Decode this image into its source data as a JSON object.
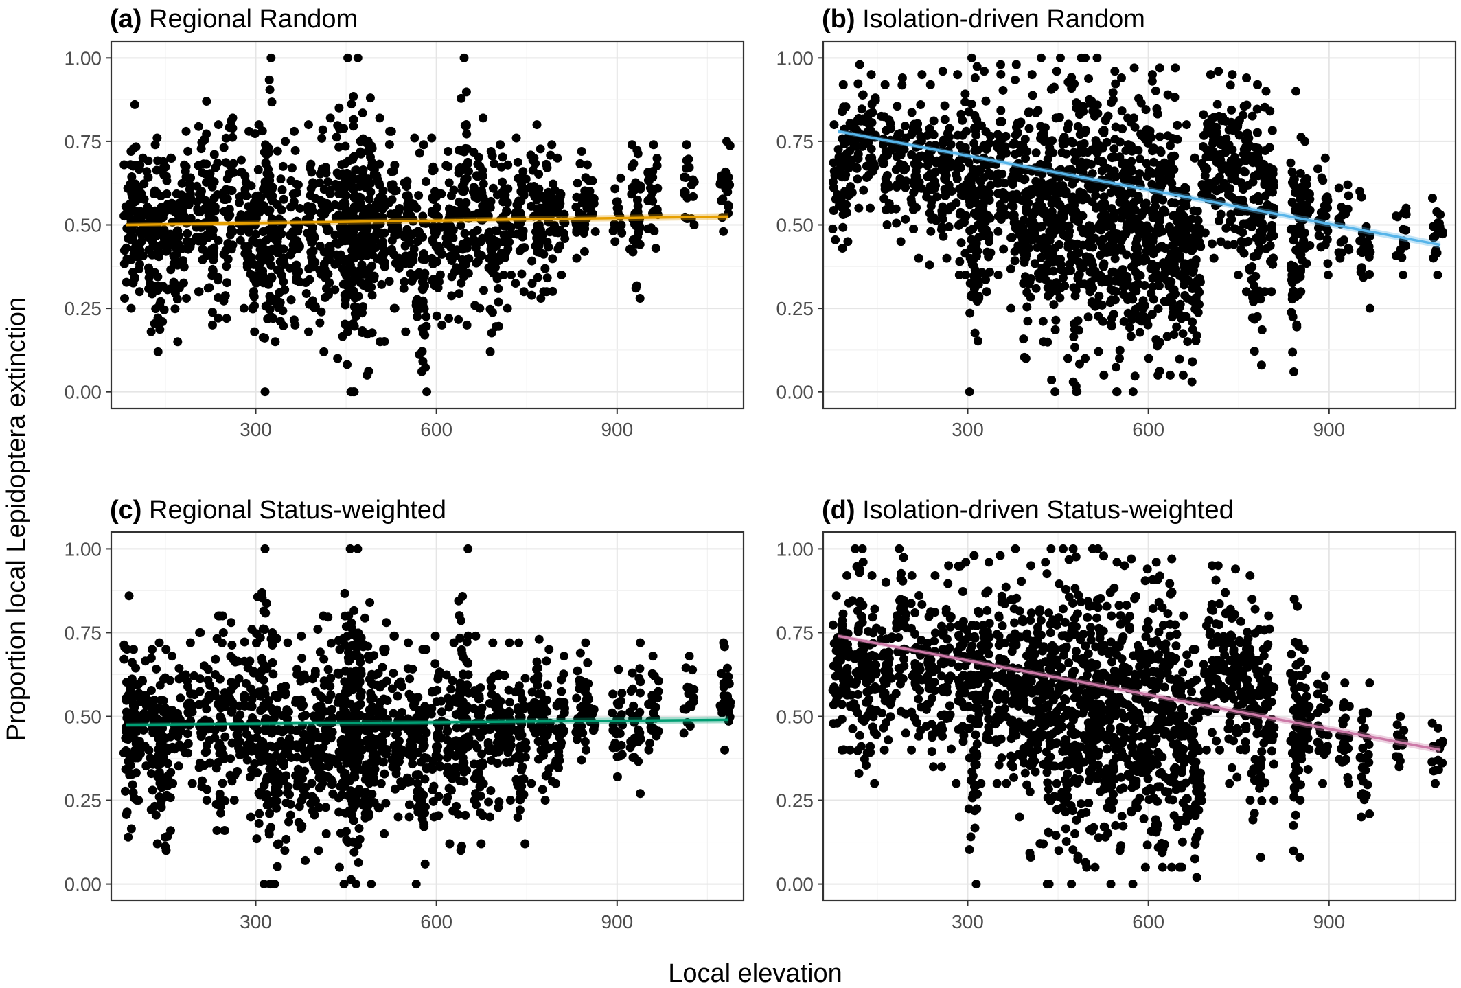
{
  "figure": {
    "ylabel": "Proportion local Lepidoptera extinction",
    "xlabel": "Local elevation"
  },
  "chart_data": [
    {
      "type": "scatter",
      "letter": "(a)",
      "title": "Regional Random",
      "xlim": [
        60,
        1110
      ],
      "ylim": [
        -0.05,
        1.05
      ],
      "xticks": [
        300,
        600,
        900
      ],
      "xtick_labels": [
        "300",
        "600",
        "900"
      ],
      "yticks": [
        0,
        0.25,
        0.5,
        0.75,
        1.0
      ],
      "ytick_labels": [
        "0.00",
        "0.25",
        "0.50",
        "0.75",
        "1.00"
      ],
      "grid": true,
      "points_color": "#000000",
      "trend": {
        "color": "#E69F00",
        "x": [
          85,
          1085
        ],
        "y": [
          0.5,
          0.525
        ]
      },
      "columns": [
        {
          "x": 90,
          "lo": 0.28,
          "hi": 0.72
        },
        {
          "x": 100,
          "lo": 0.25,
          "hi": 0.86
        },
        {
          "x": 115,
          "lo": 0.3,
          "hi": 0.7
        },
        {
          "x": 130,
          "lo": 0.18,
          "hi": 0.74
        },
        {
          "x": 145,
          "lo": 0.12,
          "hi": 0.76
        },
        {
          "x": 165,
          "lo": 0.15,
          "hi": 0.7
        },
        {
          "x": 185,
          "lo": 0.28,
          "hi": 0.78
        },
        {
          "x": 210,
          "lo": 0.3,
          "hi": 0.87
        },
        {
          "x": 230,
          "lo": 0.2,
          "hi": 0.8
        },
        {
          "x": 255,
          "lo": 0.22,
          "hi": 0.82
        },
        {
          "x": 280,
          "lo": 0.25,
          "hi": 0.78
        },
        {
          "x": 300,
          "lo": 0.18,
          "hi": 0.8
        },
        {
          "x": 320,
          "lo": 0.0,
          "hi": 1.0
        },
        {
          "x": 340,
          "lo": 0.15,
          "hi": 0.75
        },
        {
          "x": 365,
          "lo": 0.2,
          "hi": 0.78
        },
        {
          "x": 390,
          "lo": 0.18,
          "hi": 0.8
        },
        {
          "x": 415,
          "lo": 0.12,
          "hi": 0.82
        },
        {
          "x": 440,
          "lo": 0.1,
          "hi": 0.85
        },
        {
          "x": 455,
          "lo": 0.0,
          "hi": 1.0
        },
        {
          "x": 470,
          "lo": 0.0,
          "hi": 1.0
        },
        {
          "x": 485,
          "lo": 0.05,
          "hi": 0.88
        },
        {
          "x": 505,
          "lo": 0.15,
          "hi": 0.82
        },
        {
          "x": 530,
          "lo": 0.25,
          "hi": 0.78
        },
        {
          "x": 555,
          "lo": 0.18,
          "hi": 0.76
        },
        {
          "x": 575,
          "lo": 0.0,
          "hi": 0.74
        },
        {
          "x": 600,
          "lo": 0.2,
          "hi": 0.76
        },
        {
          "x": 625,
          "lo": 0.22,
          "hi": 0.72
        },
        {
          "x": 645,
          "lo": 0.2,
          "hi": 1.0
        },
        {
          "x": 670,
          "lo": 0.25,
          "hi": 0.82
        },
        {
          "x": 695,
          "lo": 0.12,
          "hi": 0.72
        },
        {
          "x": 715,
          "lo": 0.25,
          "hi": 0.74
        },
        {
          "x": 740,
          "lo": 0.3,
          "hi": 0.76
        },
        {
          "x": 765,
          "lo": 0.28,
          "hi": 0.8
        },
        {
          "x": 785,
          "lo": 0.3,
          "hi": 0.74
        },
        {
          "x": 805,
          "lo": 0.35,
          "hi": 0.7
        },
        {
          "x": 840,
          "lo": 0.4,
          "hi": 0.72
        },
        {
          "x": 855,
          "lo": 0.42,
          "hi": 0.68
        },
        {
          "x": 900,
          "lo": 0.45,
          "hi": 0.64
        },
        {
          "x": 930,
          "lo": 0.28,
          "hi": 0.74
        },
        {
          "x": 960,
          "lo": 0.43,
          "hi": 0.74
        },
        {
          "x": 1020,
          "lo": 0.5,
          "hi": 0.74
        },
        {
          "x": 1080,
          "lo": 0.48,
          "hi": 0.75
        }
      ]
    },
    {
      "type": "scatter",
      "letter": "(b)",
      "title": "Isolation-driven Random",
      "xlim": [
        60,
        1110
      ],
      "ylim": [
        -0.05,
        1.05
      ],
      "xticks": [
        300,
        600,
        900
      ],
      "xtick_labels": [
        "300",
        "600",
        "900"
      ],
      "yticks": [
        0,
        0.25,
        0.5,
        0.75,
        1.0
      ],
      "ytick_labels": [
        "0.00",
        "0.25",
        "0.50",
        "0.75",
        "1.00"
      ],
      "grid": true,
      "points_color": "#000000",
      "trend": {
        "color": "#56B4E9",
        "x": [
          85,
          1085
        ],
        "y": [
          0.78,
          0.44
        ]
      },
      "columns": [
        {
          "x": 85,
          "lo": 0.43,
          "hi": 0.8
        },
        {
          "x": 100,
          "lo": 0.45,
          "hi": 0.92
        },
        {
          "x": 120,
          "lo": 0.55,
          "hi": 0.98
        },
        {
          "x": 140,
          "lo": 0.55,
          "hi": 0.95
        },
        {
          "x": 165,
          "lo": 0.5,
          "hi": 0.92
        },
        {
          "x": 190,
          "lo": 0.45,
          "hi": 0.94
        },
        {
          "x": 215,
          "lo": 0.4,
          "hi": 0.95
        },
        {
          "x": 240,
          "lo": 0.38,
          "hi": 0.92
        },
        {
          "x": 265,
          "lo": 0.4,
          "hi": 0.96
        },
        {
          "x": 290,
          "lo": 0.35,
          "hi": 0.95
        },
        {
          "x": 310,
          "lo": 0.0,
          "hi": 1.0
        },
        {
          "x": 330,
          "lo": 0.3,
          "hi": 0.96
        },
        {
          "x": 355,
          "lo": 0.35,
          "hi": 0.98
        },
        {
          "x": 380,
          "lo": 0.25,
          "hi": 0.98
        },
        {
          "x": 400,
          "lo": 0.1,
          "hi": 0.95
        },
        {
          "x": 420,
          "lo": 0.15,
          "hi": 1.0
        },
        {
          "x": 440,
          "lo": 0.0,
          "hi": 0.96
        },
        {
          "x": 460,
          "lo": 0.1,
          "hi": 1.0
        },
        {
          "x": 480,
          "lo": 0.0,
          "hi": 1.0
        },
        {
          "x": 500,
          "lo": 0.1,
          "hi": 1.0
        },
        {
          "x": 520,
          "lo": 0.05,
          "hi": 1.0
        },
        {
          "x": 540,
          "lo": 0.0,
          "hi": 0.96
        },
        {
          "x": 560,
          "lo": 0.1,
          "hi": 0.94
        },
        {
          "x": 580,
          "lo": 0.0,
          "hi": 0.97
        },
        {
          "x": 600,
          "lo": 0.1,
          "hi": 0.95
        },
        {
          "x": 620,
          "lo": 0.05,
          "hi": 0.97
        },
        {
          "x": 640,
          "lo": 0.05,
          "hi": 0.97
        },
        {
          "x": 660,
          "lo": 0.05,
          "hi": 0.8
        },
        {
          "x": 680,
          "lo": 0.03,
          "hi": 0.7
        },
        {
          "x": 700,
          "lo": 0.4,
          "hi": 0.95
        },
        {
          "x": 720,
          "lo": 0.45,
          "hi": 0.96
        },
        {
          "x": 740,
          "lo": 0.35,
          "hi": 0.95
        },
        {
          "x": 760,
          "lo": 0.3,
          "hi": 0.94
        },
        {
          "x": 780,
          "lo": 0.08,
          "hi": 0.92
        },
        {
          "x": 800,
          "lo": 0.3,
          "hi": 0.9
        },
        {
          "x": 845,
          "lo": 0.06,
          "hi": 0.9
        },
        {
          "x": 860,
          "lo": 0.3,
          "hi": 0.75
        },
        {
          "x": 890,
          "lo": 0.35,
          "hi": 0.7
        },
        {
          "x": 925,
          "lo": 0.4,
          "hi": 0.62
        },
        {
          "x": 960,
          "lo": 0.25,
          "hi": 0.6
        },
        {
          "x": 1020,
          "lo": 0.35,
          "hi": 0.55
        },
        {
          "x": 1080,
          "lo": 0.35,
          "hi": 0.58
        }
      ]
    },
    {
      "type": "scatter",
      "letter": "(c)",
      "title": "Regional Status-weighted",
      "xlim": [
        60,
        1110
      ],
      "ylim": [
        -0.05,
        1.05
      ],
      "xticks": [
        300,
        600,
        900
      ],
      "xtick_labels": [
        "300",
        "600",
        "900"
      ],
      "yticks": [
        0,
        0.25,
        0.5,
        0.75,
        1.0
      ],
      "ytick_labels": [
        "0.00",
        "0.25",
        "0.50",
        "0.75",
        "1.00"
      ],
      "grid": true,
      "points_color": "#000000",
      "trend": {
        "color": "#009E73",
        "x": [
          85,
          1085
        ],
        "y": [
          0.475,
          0.49
        ]
      },
      "columns": [
        {
          "x": 90,
          "lo": 0.14,
          "hi": 0.86
        },
        {
          "x": 105,
          "lo": 0.25,
          "hi": 0.7
        },
        {
          "x": 120,
          "lo": 0.28,
          "hi": 0.7
        },
        {
          "x": 135,
          "lo": 0.12,
          "hi": 0.72
        },
        {
          "x": 150,
          "lo": 0.1,
          "hi": 0.7
        },
        {
          "x": 170,
          "lo": 0.3,
          "hi": 0.68
        },
        {
          "x": 190,
          "lo": 0.3,
          "hi": 0.72
        },
        {
          "x": 215,
          "lo": 0.25,
          "hi": 0.75
        },
        {
          "x": 240,
          "lo": 0.16,
          "hi": 0.8
        },
        {
          "x": 265,
          "lo": 0.25,
          "hi": 0.78
        },
        {
          "x": 290,
          "lo": 0.2,
          "hi": 0.76
        },
        {
          "x": 310,
          "lo": 0.0,
          "hi": 1.0
        },
        {
          "x": 330,
          "lo": 0.0,
          "hi": 0.75
        },
        {
          "x": 350,
          "lo": 0.1,
          "hi": 0.72
        },
        {
          "x": 375,
          "lo": 0.07,
          "hi": 0.74
        },
        {
          "x": 400,
          "lo": 0.1,
          "hi": 0.76
        },
        {
          "x": 420,
          "lo": 0.15,
          "hi": 0.8
        },
        {
          "x": 445,
          "lo": 0.05,
          "hi": 0.8
        },
        {
          "x": 455,
          "lo": 0.0,
          "hi": 1.0
        },
        {
          "x": 470,
          "lo": 0.0,
          "hi": 1.0
        },
        {
          "x": 490,
          "lo": 0.0,
          "hi": 0.84
        },
        {
          "x": 510,
          "lo": 0.15,
          "hi": 0.78
        },
        {
          "x": 535,
          "lo": 0.2,
          "hi": 0.74
        },
        {
          "x": 560,
          "lo": 0.2,
          "hi": 0.72
        },
        {
          "x": 575,
          "lo": 0.0,
          "hi": 0.7
        },
        {
          "x": 600,
          "lo": 0.2,
          "hi": 0.74
        },
        {
          "x": 625,
          "lo": 0.12,
          "hi": 0.72
        },
        {
          "x": 645,
          "lo": 0.1,
          "hi": 1.0
        },
        {
          "x": 670,
          "lo": 0.12,
          "hi": 0.74
        },
        {
          "x": 695,
          "lo": 0.2,
          "hi": 0.72
        },
        {
          "x": 715,
          "lo": 0.25,
          "hi": 0.72
        },
        {
          "x": 740,
          "lo": 0.12,
          "hi": 0.72
        },
        {
          "x": 765,
          "lo": 0.3,
          "hi": 0.73
        },
        {
          "x": 785,
          "lo": 0.25,
          "hi": 0.7
        },
        {
          "x": 805,
          "lo": 0.3,
          "hi": 0.68
        },
        {
          "x": 840,
          "lo": 0.37,
          "hi": 0.72
        },
        {
          "x": 855,
          "lo": 0.4,
          "hi": 0.66
        },
        {
          "x": 900,
          "lo": 0.32,
          "hi": 0.64
        },
        {
          "x": 930,
          "lo": 0.27,
          "hi": 0.72
        },
        {
          "x": 960,
          "lo": 0.4,
          "hi": 0.68
        },
        {
          "x": 1020,
          "lo": 0.45,
          "hi": 0.68
        },
        {
          "x": 1080,
          "lo": 0.4,
          "hi": 0.72
        }
      ]
    },
    {
      "type": "scatter",
      "letter": "(d)",
      "title": "Isolation-driven Status-weighted",
      "xlim": [
        60,
        1110
      ],
      "ylim": [
        -0.05,
        1.05
      ],
      "xticks": [
        300,
        600,
        900
      ],
      "xtick_labels": [
        "300",
        "600",
        "900"
      ],
      "yticks": [
        0,
        0.25,
        0.5,
        0.75,
        1.0
      ],
      "ytick_labels": [
        "0.00",
        "0.25",
        "0.50",
        "0.75",
        "1.00"
      ],
      "grid": true,
      "points_color": "#000000",
      "trend": {
        "color": "#CC79A7",
        "x": [
          85,
          1085
        ],
        "y": [
          0.74,
          0.4
        ]
      },
      "columns": [
        {
          "x": 85,
          "lo": 0.4,
          "hi": 0.86
        },
        {
          "x": 100,
          "lo": 0.4,
          "hi": 0.92
        },
        {
          "x": 120,
          "lo": 0.33,
          "hi": 1.0
        },
        {
          "x": 140,
          "lo": 0.3,
          "hi": 0.92
        },
        {
          "x": 165,
          "lo": 0.4,
          "hi": 0.9
        },
        {
          "x": 190,
          "lo": 0.45,
          "hi": 1.0
        },
        {
          "x": 215,
          "lo": 0.4,
          "hi": 0.92
        },
        {
          "x": 240,
          "lo": 0.35,
          "hi": 0.92
        },
        {
          "x": 265,
          "lo": 0.35,
          "hi": 0.95
        },
        {
          "x": 290,
          "lo": 0.3,
          "hi": 0.96
        },
        {
          "x": 310,
          "lo": 0.0,
          "hi": 0.98
        },
        {
          "x": 330,
          "lo": 0.3,
          "hi": 0.96
        },
        {
          "x": 355,
          "lo": 0.3,
          "hi": 0.98
        },
        {
          "x": 380,
          "lo": 0.2,
          "hi": 1.0
        },
        {
          "x": 400,
          "lo": 0.08,
          "hi": 0.95
        },
        {
          "x": 420,
          "lo": 0.12,
          "hi": 0.96
        },
        {
          "x": 440,
          "lo": 0.0,
          "hi": 1.0
        },
        {
          "x": 460,
          "lo": 0.1,
          "hi": 1.0
        },
        {
          "x": 480,
          "lo": 0.0,
          "hi": 1.0
        },
        {
          "x": 500,
          "lo": 0.05,
          "hi": 1.0
        },
        {
          "x": 520,
          "lo": 0.05,
          "hi": 1.0
        },
        {
          "x": 540,
          "lo": 0.0,
          "hi": 0.96
        },
        {
          "x": 560,
          "lo": 0.1,
          "hi": 0.95
        },
        {
          "x": 580,
          "lo": 0.0,
          "hi": 0.97
        },
        {
          "x": 600,
          "lo": 0.05,
          "hi": 0.94
        },
        {
          "x": 620,
          "lo": 0.05,
          "hi": 0.96
        },
        {
          "x": 640,
          "lo": 0.05,
          "hi": 0.97
        },
        {
          "x": 660,
          "lo": 0.05,
          "hi": 0.8
        },
        {
          "x": 680,
          "lo": 0.02,
          "hi": 0.7
        },
        {
          "x": 700,
          "lo": 0.4,
          "hi": 0.95
        },
        {
          "x": 720,
          "lo": 0.4,
          "hi": 0.95
        },
        {
          "x": 740,
          "lo": 0.3,
          "hi": 0.94
        },
        {
          "x": 760,
          "lo": 0.25,
          "hi": 0.92
        },
        {
          "x": 780,
          "lo": 0.08,
          "hi": 0.85
        },
        {
          "x": 800,
          "lo": 0.25,
          "hi": 0.8
        },
        {
          "x": 845,
          "lo": 0.08,
          "hi": 0.85
        },
        {
          "x": 860,
          "lo": 0.25,
          "hi": 0.7
        },
        {
          "x": 890,
          "lo": 0.3,
          "hi": 0.62
        },
        {
          "x": 925,
          "lo": 0.3,
          "hi": 0.6
        },
        {
          "x": 960,
          "lo": 0.2,
          "hi": 0.6
        },
        {
          "x": 1020,
          "lo": 0.35,
          "hi": 0.5
        },
        {
          "x": 1080,
          "lo": 0.3,
          "hi": 0.48
        }
      ]
    }
  ]
}
